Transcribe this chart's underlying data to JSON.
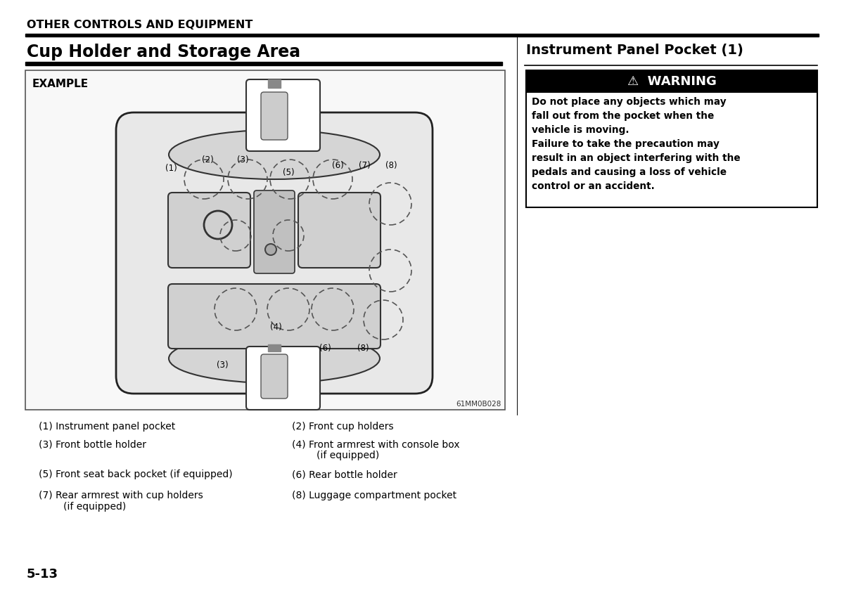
{
  "bg_color": "#ffffff",
  "header_text": "OTHER CONTROLS AND EQUIPMENT",
  "section_left": "Cup Holder and Storage Area",
  "section_right": "Instrument Panel Pocket (1)",
  "example_label": "EXAMPLE",
  "diagram_code": "61MM0B028",
  "warning_header": "⚠  WARNING",
  "warning_body": "Do not place any objects which may\nfall out from the pocket when the\nvehicle is moving.\nFailure to take the precaution may\nresult in an object interfering with the\npedals and causing a loss of vehicle\ncontrol or an accident.",
  "legend": [
    [
      "(1) Instrument panel pocket",
      "(2) Front cup holders"
    ],
    [
      "(3) Front bottle holder",
      "(4) Front armrest with console box\n        (if equipped)"
    ],
    [
      "(5) Front seat back pocket (if equipped)",
      "(6) Rear bottle holder"
    ],
    [
      "(7) Rear armrest with cup holders\n        (if equipped)",
      "(8) Luggage compartment pocket"
    ]
  ],
  "page_number": "5-13"
}
